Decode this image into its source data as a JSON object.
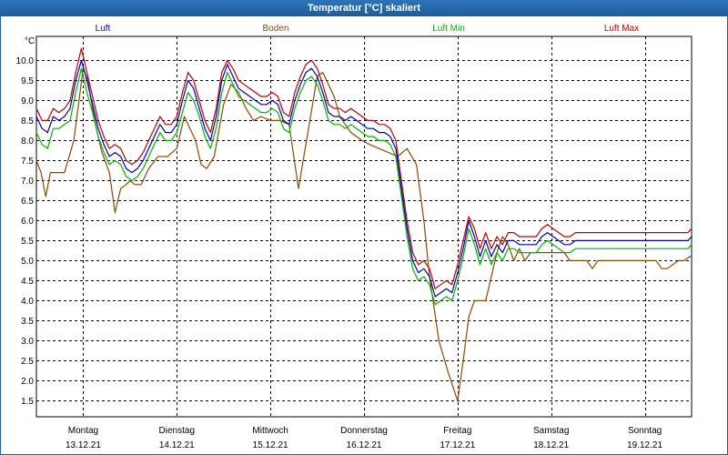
{
  "window": {
    "title": "Temperatur [°C] skaliert"
  },
  "chart_data": {
    "type": "line",
    "title": "Temperatur [°C] skaliert",
    "ylabel": "°C",
    "xlabel": "",
    "ylim": [
      1.1,
      10.6
    ],
    "xlim": [
      0,
      7
    ],
    "grid": true,
    "yticks": [
      1.5,
      2.0,
      2.5,
      3.0,
      3.5,
      4.0,
      4.5,
      5.0,
      5.5,
      6.0,
      6.5,
      7.0,
      7.5,
      8.0,
      8.5,
      9.0,
      9.5,
      10.0
    ],
    "ytick_labels": [
      "1.5",
      "2.0",
      "2.5",
      "3.0",
      "3.5",
      "4.0",
      "4.5",
      "5.0",
      "5.5",
      "6.0",
      "6.5",
      "7.0",
      "7.5",
      "8.0",
      "8.5",
      "9.0",
      "9.5",
      "10.0"
    ],
    "day_labels": [
      {
        "day": "Montag",
        "date": "13.12.21"
      },
      {
        "day": "Dienstag",
        "date": "14.12.21"
      },
      {
        "day": "Mittwoch",
        "date": "15.12.21"
      },
      {
        "day": "Donnerstag",
        "date": "16.12.21"
      },
      {
        "day": "Freitag",
        "date": "17.12.21"
      },
      {
        "day": "Samstag",
        "date": "18.12.21"
      },
      {
        "day": "Sonntag",
        "date": "19.12.21"
      }
    ],
    "legend_placement": "top",
    "series": [
      {
        "name": "Luft",
        "color": "#0000c0",
        "x": [
          0,
          0.06,
          0.12,
          0.18,
          0.24,
          0.3,
          0.36,
          0.42,
          0.48,
          0.54,
          0.6,
          0.66,
          0.72,
          0.78,
          0.84,
          0.9,
          0.96,
          1.02,
          1.08,
          1.14,
          1.2,
          1.26,
          1.32,
          1.38,
          1.44,
          1.5,
          1.56,
          1.62,
          1.68,
          1.74,
          1.8,
          1.86,
          1.92,
          1.98,
          2.04,
          2.1,
          2.16,
          2.22,
          2.28,
          2.34,
          2.4,
          2.46,
          2.52,
          2.58,
          2.64,
          2.7,
          2.76,
          2.82,
          2.88,
          2.94,
          3.0,
          3.06,
          3.12,
          3.18,
          3.24,
          3.3,
          3.36,
          3.42,
          3.48,
          3.54,
          3.6,
          3.66,
          3.72,
          3.78,
          3.84,
          3.9,
          3.96,
          4.02,
          4.08,
          4.14,
          4.2,
          4.26,
          4.32,
          4.38,
          4.44,
          4.5,
          4.56,
          4.62,
          4.68,
          4.74,
          4.8,
          4.86,
          4.92,
          4.98,
          5.04,
          5.1,
          5.16,
          5.22,
          5.28,
          5.34,
          5.4,
          5.46,
          5.52,
          5.58,
          5.64,
          5.7,
          5.76,
          5.82,
          5.88,
          5.94,
          6.0,
          6.06,
          6.12,
          6.18,
          6.24,
          6.3,
          6.36,
          6.42,
          6.48,
          6.54,
          6.6,
          6.66,
          6.72,
          6.78,
          6.84,
          6.9,
          6.96,
          7.0
        ],
        "values": [
          8.6,
          8.3,
          8.2,
          8.6,
          8.5,
          8.6,
          8.8,
          9.5,
          10.0,
          9.5,
          8.9,
          8.3,
          7.9,
          7.6,
          7.7,
          7.6,
          7.3,
          7.2,
          7.3,
          7.5,
          7.8,
          8.1,
          8.4,
          8.2,
          8.2,
          8.4,
          9.0,
          9.5,
          9.3,
          8.8,
          8.3,
          8.0,
          8.6,
          9.5,
          9.9,
          9.6,
          9.3,
          9.2,
          9.1,
          9.0,
          8.9,
          8.9,
          9.0,
          8.9,
          8.5,
          8.4,
          9.0,
          9.4,
          9.7,
          9.8,
          9.6,
          9.2,
          8.7,
          8.6,
          8.6,
          8.5,
          8.6,
          8.5,
          8.4,
          8.3,
          8.3,
          8.2,
          8.2,
          8.1,
          7.8,
          6.8,
          5.8,
          5.0,
          4.7,
          4.8,
          4.6,
          4.1,
          4.2,
          4.3,
          4.2,
          4.7,
          5.3,
          6.0,
          5.6,
          5.1,
          5.5,
          5.1,
          5.4,
          5.2,
          5.5,
          5.5,
          5.4,
          5.4,
          5.4,
          5.4,
          5.6,
          5.7,
          5.6,
          5.5,
          5.4,
          5.4,
          5.5,
          5.5,
          5.5,
          5.5,
          5.5,
          5.5,
          5.5,
          5.5,
          5.5,
          5.5,
          5.5,
          5.5,
          5.5,
          5.5,
          5.5,
          5.5,
          5.5,
          5.5,
          5.5,
          5.5,
          5.5,
          5.6
        ]
      },
      {
        "name": "Boden",
        "color": "#8b4a00",
        "x": [
          0,
          0.05,
          0.1,
          0.15,
          0.2,
          0.3,
          0.4,
          0.5,
          0.55,
          0.6,
          0.65,
          0.7,
          0.78,
          0.84,
          0.9,
          0.96,
          1.0,
          1.05,
          1.12,
          1.2,
          1.3,
          1.4,
          1.5,
          1.58,
          1.62,
          1.7,
          1.76,
          1.82,
          1.9,
          2.0,
          2.08,
          2.16,
          2.24,
          2.32,
          2.4,
          2.5,
          2.6,
          2.7,
          2.8,
          2.9,
          3.0,
          3.06,
          3.12,
          3.18,
          3.24,
          3.3,
          3.36,
          3.42,
          3.48,
          3.56,
          3.66,
          3.76,
          3.86,
          3.96,
          4.06,
          4.14,
          4.2,
          4.3,
          4.4,
          4.5,
          4.56,
          4.62,
          4.68,
          4.74,
          4.8,
          4.86,
          4.92,
          4.98,
          5.04,
          5.1,
          5.16,
          5.22,
          5.28,
          5.34,
          5.4,
          5.46,
          5.52,
          5.58,
          5.64,
          5.7,
          5.76,
          5.82,
          5.88,
          5.94,
          6.0,
          6.1,
          6.2,
          6.3,
          6.4,
          6.5,
          6.56,
          6.62,
          6.68,
          6.74,
          6.8,
          6.86,
          6.92,
          6.98,
          7.0
        ],
        "values": [
          7.5,
          7.2,
          6.6,
          7.2,
          7.2,
          7.2,
          8.0,
          9.8,
          9.5,
          8.8,
          8.2,
          7.7,
          7.2,
          6.2,
          6.8,
          6.9,
          7.0,
          6.9,
          6.9,
          7.3,
          7.6,
          7.6,
          7.8,
          8.6,
          8.4,
          8.0,
          7.4,
          7.3,
          7.6,
          8.9,
          9.4,
          9.2,
          8.8,
          8.5,
          8.6,
          8.5,
          8.5,
          8.4,
          6.8,
          8.2,
          9.6,
          9.7,
          9.4,
          9.1,
          8.6,
          8.4,
          8.2,
          8.1,
          8.0,
          7.9,
          7.8,
          7.7,
          7.6,
          7.8,
          7.4,
          6.0,
          4.6,
          3.0,
          2.2,
          1.5,
          2.5,
          3.6,
          4.0,
          4.0,
          4.0,
          4.6,
          5.2,
          5.6,
          5.4,
          5.0,
          5.3,
          5.0,
          5.2,
          5.2,
          5.2,
          5.2,
          5.2,
          5.2,
          5.2,
          5.0,
          5.0,
          5.0,
          5.0,
          4.8,
          5.0,
          5.0,
          5.0,
          5.0,
          5.0,
          5.0,
          5.0,
          5.0,
          4.8,
          4.8,
          4.9,
          5.0,
          5.0,
          5.1,
          5.1
        ]
      },
      {
        "name": "Luft Min",
        "color": "#00b400",
        "x": [
          0,
          0.06,
          0.12,
          0.18,
          0.24,
          0.3,
          0.36,
          0.42,
          0.48,
          0.54,
          0.6,
          0.66,
          0.72,
          0.78,
          0.84,
          0.9,
          0.96,
          1.02,
          1.08,
          1.14,
          1.2,
          1.26,
          1.32,
          1.38,
          1.44,
          1.5,
          1.56,
          1.62,
          1.68,
          1.74,
          1.8,
          1.86,
          1.92,
          1.98,
          2.04,
          2.1,
          2.16,
          2.22,
          2.28,
          2.34,
          2.4,
          2.46,
          2.52,
          2.58,
          2.64,
          2.7,
          2.76,
          2.82,
          2.88,
          2.94,
          3.0,
          3.06,
          3.12,
          3.18,
          3.24,
          3.3,
          3.36,
          3.42,
          3.48,
          3.54,
          3.6,
          3.66,
          3.72,
          3.78,
          3.84,
          3.9,
          3.96,
          4.02,
          4.08,
          4.14,
          4.2,
          4.26,
          4.32,
          4.38,
          4.44,
          4.5,
          4.56,
          4.62,
          4.68,
          4.74,
          4.8,
          4.86,
          4.92,
          4.98,
          5.04,
          5.1,
          5.16,
          5.22,
          5.28,
          5.34,
          5.4,
          5.46,
          5.52,
          5.58,
          5.64,
          5.7,
          5.76,
          5.82,
          5.88,
          5.94,
          6.0,
          6.06,
          6.12,
          6.18,
          6.24,
          6.3,
          6.36,
          6.42,
          6.48,
          6.54,
          6.6,
          6.66,
          6.72,
          6.78,
          6.84,
          6.9,
          6.96,
          7.0
        ],
        "values": [
          8.2,
          7.9,
          7.8,
          8.3,
          8.3,
          8.4,
          8.5,
          9.2,
          9.8,
          9.2,
          8.7,
          8.1,
          7.7,
          7.4,
          7.5,
          7.4,
          7.1,
          7.0,
          7.1,
          7.3,
          7.6,
          7.9,
          8.2,
          8.0,
          8.0,
          8.2,
          8.7,
          9.2,
          9.0,
          8.6,
          8.1,
          7.8,
          8.3,
          9.2,
          9.7,
          9.4,
          9.1,
          9.0,
          8.9,
          8.8,
          8.7,
          8.7,
          8.8,
          8.7,
          8.3,
          8.2,
          8.8,
          9.2,
          9.5,
          9.6,
          9.4,
          9.0,
          8.5,
          8.4,
          8.4,
          8.3,
          8.4,
          8.3,
          8.2,
          8.1,
          8.1,
          8.0,
          8.0,
          7.9,
          7.6,
          6.6,
          5.6,
          4.8,
          4.5,
          4.6,
          4.4,
          3.9,
          4.0,
          4.1,
          4.0,
          4.5,
          5.1,
          5.8,
          5.4,
          4.9,
          5.3,
          4.9,
          5.2,
          5.0,
          5.3,
          5.3,
          5.2,
          5.2,
          5.2,
          5.2,
          5.4,
          5.5,
          5.4,
          5.3,
          5.2,
          5.2,
          5.3,
          5.3,
          5.3,
          5.3,
          5.3,
          5.3,
          5.3,
          5.3,
          5.3,
          5.3,
          5.3,
          5.3,
          5.3,
          5.3,
          5.3,
          5.3,
          5.3,
          5.3,
          5.3,
          5.3,
          5.3,
          5.4
        ]
      },
      {
        "name": "Luft Max",
        "color": "#c00000",
        "x": [
          0,
          0.06,
          0.12,
          0.18,
          0.24,
          0.3,
          0.36,
          0.42,
          0.48,
          0.54,
          0.6,
          0.66,
          0.72,
          0.78,
          0.84,
          0.9,
          0.96,
          1.02,
          1.08,
          1.14,
          1.2,
          1.26,
          1.32,
          1.38,
          1.44,
          1.5,
          1.56,
          1.62,
          1.68,
          1.74,
          1.8,
          1.86,
          1.92,
          1.98,
          2.04,
          2.1,
          2.16,
          2.22,
          2.28,
          2.34,
          2.4,
          2.46,
          2.52,
          2.58,
          2.64,
          2.7,
          2.76,
          2.82,
          2.88,
          2.94,
          3.0,
          3.06,
          3.12,
          3.18,
          3.24,
          3.3,
          3.36,
          3.42,
          3.48,
          3.54,
          3.6,
          3.66,
          3.72,
          3.78,
          3.84,
          3.9,
          3.96,
          4.02,
          4.08,
          4.14,
          4.2,
          4.26,
          4.32,
          4.38,
          4.44,
          4.5,
          4.56,
          4.62,
          4.68,
          4.74,
          4.8,
          4.86,
          4.92,
          4.98,
          5.04,
          5.1,
          5.16,
          5.22,
          5.28,
          5.34,
          5.4,
          5.46,
          5.52,
          5.58,
          5.64,
          5.7,
          5.76,
          5.82,
          5.88,
          5.94,
          6.0,
          6.06,
          6.12,
          6.18,
          6.24,
          6.3,
          6.36,
          6.42,
          6.48,
          6.54,
          6.6,
          6.66,
          6.72,
          6.78,
          6.84,
          6.9,
          6.96,
          7.0
        ],
        "values": [
          8.8,
          8.5,
          8.5,
          8.8,
          8.7,
          8.8,
          9.0,
          9.7,
          10.3,
          9.7,
          9.1,
          8.5,
          8.1,
          7.8,
          7.9,
          7.8,
          7.5,
          7.4,
          7.5,
          7.7,
          8.0,
          8.3,
          8.6,
          8.4,
          8.4,
          8.6,
          9.2,
          9.7,
          9.5,
          9.0,
          8.5,
          8.2,
          8.8,
          9.7,
          10.0,
          9.8,
          9.5,
          9.4,
          9.3,
          9.2,
          9.1,
          9.1,
          9.2,
          9.1,
          8.7,
          8.6,
          9.2,
          9.6,
          9.9,
          10.0,
          9.8,
          9.4,
          8.9,
          8.8,
          8.8,
          8.7,
          8.8,
          8.7,
          8.6,
          8.5,
          8.5,
          8.4,
          8.4,
          8.3,
          8.0,
          7.0,
          6.0,
          5.2,
          4.9,
          5.0,
          4.8,
          4.3,
          4.4,
          4.5,
          4.4,
          4.9,
          5.5,
          6.1,
          5.8,
          5.3,
          5.7,
          5.3,
          5.6,
          5.4,
          5.7,
          5.7,
          5.6,
          5.6,
          5.6,
          5.6,
          5.8,
          5.9,
          5.8,
          5.7,
          5.6,
          5.6,
          5.7,
          5.7,
          5.7,
          5.7,
          5.7,
          5.7,
          5.7,
          5.7,
          5.7,
          5.7,
          5.7,
          5.7,
          5.7,
          5.7,
          5.7,
          5.7,
          5.7,
          5.7,
          5.7,
          5.7,
          5.7,
          5.8
        ]
      }
    ]
  }
}
